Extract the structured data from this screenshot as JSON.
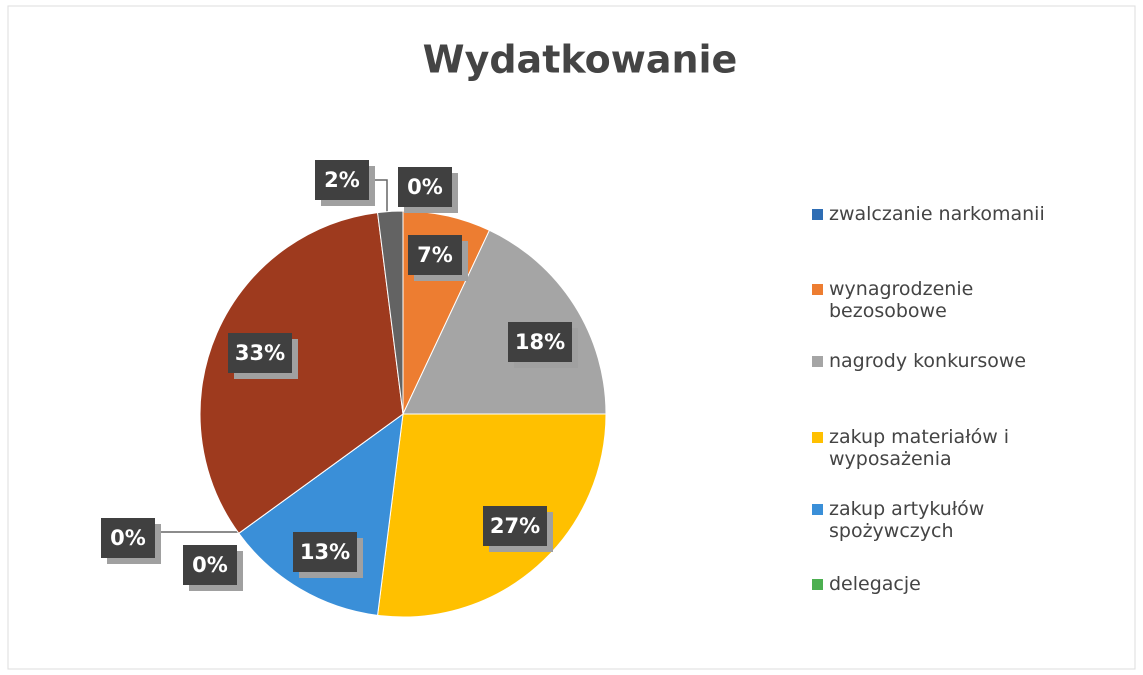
{
  "chart_data": {
    "type": "pie",
    "title": "Wydatkowanie",
    "categories": [
      "zwalczanie narkomanii",
      "wynagrodzenie bezosobowe",
      "nagrody konkursowe",
      "zakup materiałów i wyposażenia",
      "zakup artykułów spożywczych",
      "delegacje",
      null,
      null,
      null
    ],
    "values": [
      0,
      7,
      18,
      27,
      13,
      0,
      0,
      33,
      2
    ],
    "value_labels": [
      "0%",
      "7%",
      "18%",
      "27%",
      "13%",
      "0%",
      "0%",
      "33%",
      "2%"
    ],
    "colors": [
      "#2e6db4",
      "#ed7d31",
      "#a5a5a5",
      "#ffc000",
      "#3a8fd8",
      "#4caf50",
      "#255e91",
      "#9e3a1e",
      "#636363"
    ]
  }
}
